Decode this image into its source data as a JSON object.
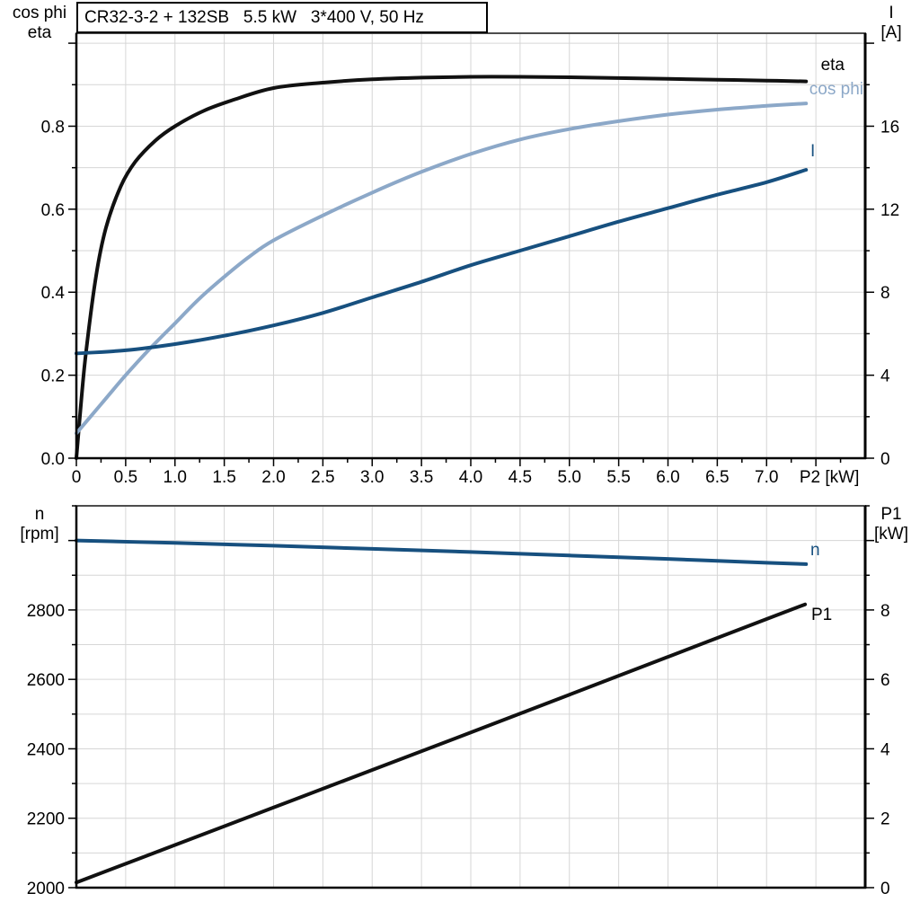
{
  "title_box": "CR32-3-2 + 132SB   5.5 kW   3*400 V, 50 Hz",
  "colors": {
    "black_curve": "#111111",
    "dark_blue": "#17507f",
    "light_blue": "#8ca8c8",
    "grid": "#d6d6d6",
    "frame": "#000000",
    "frame_top": "#4d4d4d"
  },
  "chart_data": [
    {
      "id": "motor-curves",
      "type": "line",
      "title": "CR32-3-2 + 132SB   5.5 kW   3*400 V, 50 Hz",
      "x_axis": {
        "label": "P2 [kW]",
        "min": 0,
        "max": 8,
        "major_step": 0.5,
        "minor_step": 0.25,
        "grid_step": 0.5,
        "tick_labels": [
          "0",
          "0.5",
          "1.0",
          "1.5",
          "2.0",
          "2.5",
          "3.0",
          "3.5",
          "4.0",
          "4.5",
          "5.0",
          "5.5",
          "6.0",
          "6.5",
          "7.0"
        ],
        "label_tick_value": 7.5
      },
      "y_left": {
        "title_lines": [
          "cos phi",
          "eta"
        ],
        "min": 0,
        "max": 1.024,
        "major_step": 0.2,
        "minor_step": 0.1,
        "grid_step": 0.1,
        "tick_values": [
          0,
          0.2,
          0.4,
          0.6,
          0.8
        ],
        "tick_labels": [
          "0.0",
          "0.2",
          "0.4",
          "0.6",
          "0.8"
        ]
      },
      "y_right": {
        "title_lines": [
          "I",
          "[A]"
        ],
        "min": 0,
        "max": 20.48,
        "major_step": 4,
        "minor_step": 2,
        "tick_values": [
          0,
          4,
          8,
          12,
          16
        ],
        "tick_labels": [
          "0",
          "4",
          "8",
          "12",
          "16"
        ]
      },
      "series": [
        {
          "name": "eta",
          "axis": "left",
          "color": "#111111",
          "points": [
            [
              0,
              0
            ],
            [
              0.05,
              0.14
            ],
            [
              0.1,
              0.26
            ],
            [
              0.2,
              0.44
            ],
            [
              0.3,
              0.555
            ],
            [
              0.45,
              0.655
            ],
            [
              0.6,
              0.715
            ],
            [
              0.8,
              0.765
            ],
            [
              1.0,
              0.8
            ],
            [
              1.3,
              0.838
            ],
            [
              1.6,
              0.864
            ],
            [
              2.0,
              0.892
            ],
            [
              2.5,
              0.905
            ],
            [
              3.0,
              0.913
            ],
            [
              3.5,
              0.917
            ],
            [
              4.0,
              0.919
            ],
            [
              4.5,
              0.919
            ],
            [
              5.0,
              0.918
            ],
            [
              5.5,
              0.916
            ],
            [
              6.0,
              0.914
            ],
            [
              6.5,
              0.912
            ],
            [
              7.0,
              0.91
            ],
            [
              7.4,
              0.908
            ]
          ]
        },
        {
          "name": "cos phi",
          "axis": "left",
          "color": "#8ca8c8",
          "points": [
            [
              0,
              0.06
            ],
            [
              0.25,
              0.13
            ],
            [
              0.5,
              0.2
            ],
            [
              0.75,
              0.265
            ],
            [
              1.0,
              0.325
            ],
            [
              1.25,
              0.385
            ],
            [
              1.5,
              0.437
            ],
            [
              1.75,
              0.485
            ],
            [
              2.0,
              0.525
            ],
            [
              2.5,
              0.585
            ],
            [
              3.0,
              0.64
            ],
            [
              3.5,
              0.69
            ],
            [
              4.0,
              0.733
            ],
            [
              4.5,
              0.768
            ],
            [
              5.0,
              0.793
            ],
            [
              5.5,
              0.812
            ],
            [
              6.0,
              0.828
            ],
            [
              6.5,
              0.84
            ],
            [
              7.0,
              0.849
            ],
            [
              7.4,
              0.855
            ]
          ]
        },
        {
          "name": "I",
          "axis": "right",
          "color": "#17507f",
          "points": [
            [
              0,
              5.05
            ],
            [
              0.5,
              5.2
            ],
            [
              1.0,
              5.5
            ],
            [
              1.5,
              5.9
            ],
            [
              2.0,
              6.4
            ],
            [
              2.5,
              7.0
            ],
            [
              3.0,
              7.75
            ],
            [
              3.5,
              8.5
            ],
            [
              4.0,
              9.3
            ],
            [
              4.5,
              10.0
            ],
            [
              5.0,
              10.7
            ],
            [
              5.5,
              11.4
            ],
            [
              6.0,
              12.05
            ],
            [
              6.5,
              12.7
            ],
            [
              7.0,
              13.3
            ],
            [
              7.4,
              13.9
            ]
          ]
        }
      ]
    },
    {
      "id": "speed-power-curves",
      "type": "line",
      "x_axis": {
        "label": "",
        "min": 0,
        "max": 8,
        "major_step": 0,
        "minor_step": 0,
        "grid_step": 0.5,
        "tick_labels": []
      },
      "y_left": {
        "title_lines": [
          "n",
          "[rpm]"
        ],
        "min": 2000,
        "max": 3100,
        "major_step": 200,
        "minor_step": 100,
        "grid_step": 100,
        "tick_values": [
          2000,
          2200,
          2400,
          2600,
          2800
        ],
        "tick_labels": [
          "2000",
          "2200",
          "2400",
          "2600",
          "2800"
        ]
      },
      "y_right": {
        "title_lines": [
          "P1",
          "[kW]"
        ],
        "min": 0,
        "max": 11,
        "major_step": 2,
        "minor_step": 1,
        "tick_values": [
          0,
          2,
          4,
          6,
          8
        ],
        "tick_labels": [
          "0",
          "2",
          "4",
          "6",
          "8"
        ]
      },
      "series": [
        {
          "name": "n",
          "axis": "left",
          "color": "#17507f",
          "points": [
            [
              0,
              3000
            ],
            [
              1,
              2993
            ],
            [
              2,
              2985
            ],
            [
              3,
              2976
            ],
            [
              4,
              2967
            ],
            [
              5,
              2957
            ],
            [
              6,
              2947
            ],
            [
              7,
              2936
            ],
            [
              7.4,
              2932
            ]
          ]
        },
        {
          "name": "P1",
          "axis": "right",
          "color": "#111111",
          "points": [
            [
              0,
              0.15
            ],
            [
              1,
              1.23
            ],
            [
              2,
              2.31
            ],
            [
              3,
              3.39
            ],
            [
              4,
              4.47
            ],
            [
              5,
              5.56
            ],
            [
              6,
              6.65
            ],
            [
              7,
              7.74
            ],
            [
              7.39,
              8.16
            ]
          ]
        }
      ]
    }
  ]
}
